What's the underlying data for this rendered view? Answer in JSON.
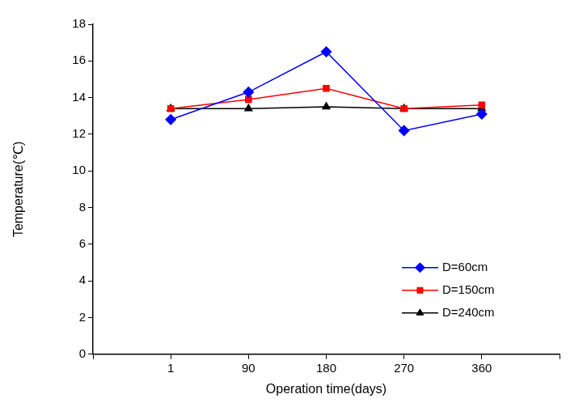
{
  "chart_data": {
    "type": "line",
    "x_label": "Operation time(days)",
    "y_label": "Temperature(℃)",
    "categories": [
      null,
      "1",
      "90",
      "180",
      "270",
      "360",
      null
    ],
    "series": [
      {
        "name": "D=60cm",
        "color": "#0000ff",
        "marker": "diamond",
        "values": [
          null,
          12.8,
          14.3,
          16.5,
          12.2,
          13.1,
          null
        ]
      },
      {
        "name": "D=150cm",
        "color": "#ff0000",
        "marker": "square",
        "values": [
          null,
          13.4,
          13.9,
          14.5,
          13.4,
          13.6,
          null
        ]
      },
      {
        "name": "D=240cm",
        "color": "#000000",
        "marker": "triangle",
        "values": [
          null,
          13.4,
          13.4,
          13.5,
          13.4,
          13.4,
          null
        ]
      }
    ],
    "ylim": [
      0,
      18
    ],
    "yticks": [
      0,
      2,
      4,
      6,
      8,
      10,
      12,
      14,
      16,
      18
    ],
    "grid": false,
    "legend": "lower right"
  }
}
